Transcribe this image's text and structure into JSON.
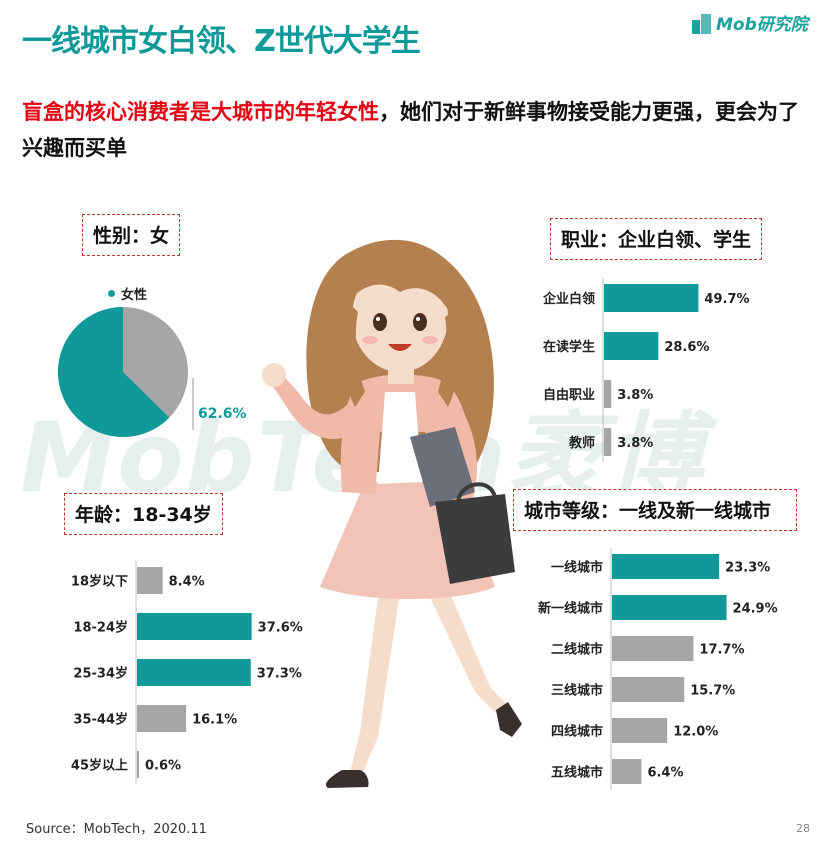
{
  "header": {
    "title": "一线城市女白领、Z世代大学生",
    "logo_text": "Mob研究院"
  },
  "headline": {
    "red_part": "盲盒的核心消费者是大城市的年轻女性",
    "black_part": "，她们对于新鲜事物接受能力更强，更会为了兴趣而买单"
  },
  "watermark": "MobTech袤博",
  "footer": {
    "source": "Source：MobTech，2020.11",
    "page_number": "28"
  },
  "colors": {
    "teal": "#0f9999",
    "gray": "#a6a6a6",
    "red": "#e60012"
  },
  "sections": {
    "gender": "性别：女",
    "occupation": "职业：企业白领、学生",
    "age": "年龄：18-34岁",
    "city": "城市等级：一线及新一线城市"
  },
  "chart_data": [
    {
      "type": "pie",
      "id": "gender",
      "categories": [
        "女性"
      ],
      "values": [
        62.6
      ],
      "value_labels": [
        "62.6%"
      ],
      "legend": [
        "女性"
      ]
    },
    {
      "type": "bar",
      "id": "occupation",
      "orientation": "horizontal",
      "categories": [
        "企业白领",
        "在读学生",
        "自由职业",
        "教师"
      ],
      "values": [
        49.7,
        28.6,
        3.8,
        3.8
      ],
      "value_labels": [
        "49.7%",
        "28.6%",
        "3.8%",
        "3.8%"
      ],
      "highlight": [
        true,
        true,
        false,
        false
      ]
    },
    {
      "type": "bar",
      "id": "age",
      "orientation": "horizontal",
      "categories": [
        "18岁以下",
        "18-24岁",
        "25-34岁",
        "35-44岁",
        "45岁以上"
      ],
      "values": [
        8.4,
        37.6,
        37.3,
        16.1,
        0.6
      ],
      "value_labels": [
        "8.4%",
        "37.6%",
        "37.3%",
        "16.1%",
        "0.6%"
      ],
      "highlight": [
        false,
        true,
        true,
        false,
        false
      ]
    },
    {
      "type": "bar",
      "id": "city",
      "orientation": "horizontal",
      "categories": [
        "一线城市",
        "新一线城市",
        "二线城市",
        "三线城市",
        "四线城市",
        "五线城市"
      ],
      "values": [
        23.3,
        24.9,
        17.7,
        15.7,
        12.0,
        6.4
      ],
      "value_labels": [
        "23.3%",
        "24.9%",
        "17.7%",
        "15.7%",
        "12.0%",
        "6.4%"
      ],
      "highlight": [
        true,
        true,
        false,
        false,
        false,
        false
      ]
    }
  ]
}
